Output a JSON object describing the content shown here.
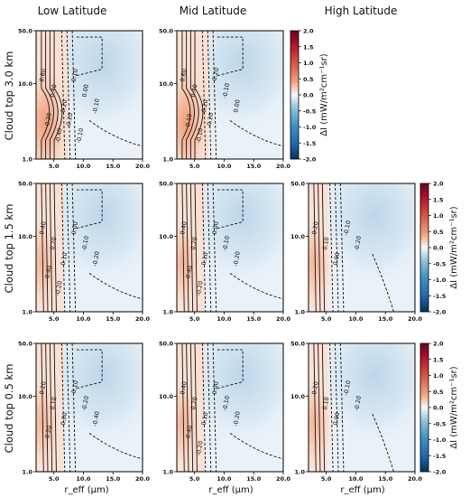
{
  "figure": {
    "column_titles": [
      "Low Latitude",
      "Mid Latitude",
      "High Latitude"
    ],
    "row_titles": [
      "Cloud top 3.0 km",
      "Cloud top 1.5 km",
      "Cloud top 0.5 km"
    ],
    "x_axis_label": "r_eff (μm)",
    "colorbar_label": "ΔI (mW/m²cm⁻¹sr)",
    "colorbar_ticks": [
      "2.0",
      "1.5",
      "1.0",
      "0.5",
      "0.0",
      "-0.5",
      "-1.0",
      "-1.5",
      "-2.0"
    ],
    "colors": {
      "positive": "#c0392b",
      "neutral": "#f7f7f7",
      "negative": "#2c6fb5"
    }
  },
  "chart_data": {
    "type": "heatmap",
    "title": "",
    "xlabel": "r_eff (μm)",
    "ylabel": "",
    "x_ticks": [
      "5.0",
      "10.0",
      "15.0",
      "20.0"
    ],
    "y_ticks": [
      "1.0",
      "10.0",
      "50.0"
    ],
    "xlim": [
      2,
      20
    ],
    "ylim": [
      1,
      50
    ],
    "y_scale": "log",
    "colorbar_range": [
      -2.0,
      2.0
    ],
    "colormap": "diverging blue-white-red",
    "panels": [
      {
        "row": "Cloud top 3.0 km",
        "col": "Low Latitude",
        "present": true,
        "contour_labels": [
          "0.60",
          "0.40",
          "0.20",
          "0.10",
          "0.00",
          "-0.10",
          "-0.20",
          "-0.40",
          "-0.20",
          "-0.10"
        ]
      },
      {
        "row": "Cloud top 3.0 km",
        "col": "Mid Latitude",
        "present": true,
        "contour_labels": [
          "0.60",
          "0.40",
          "0.20",
          "-0.20",
          "-0.10",
          "0.00",
          "0.10",
          "-0.10",
          "-0.20"
        ]
      },
      {
        "row": "Cloud top 3.0 km",
        "col": "High Latitude",
        "present": false
      },
      {
        "row": "Cloud top 1.5 km",
        "col": "Low Latitude",
        "present": true,
        "contour_labels": [
          "0.40",
          "0.20",
          "0.10",
          "0.00",
          "-0.10",
          "-0.20",
          "-0.40",
          "-0.20"
        ]
      },
      {
        "row": "Cloud top 1.5 km",
        "col": "Mid Latitude",
        "present": true,
        "contour_labels": [
          "0.40",
          "0.20",
          "0.10",
          "0.00",
          "-0.10",
          "-0.20",
          "-0.40",
          "-0.20"
        ]
      },
      {
        "row": "Cloud top 1.5 km",
        "col": "High Latitude",
        "present": true,
        "contour_labels": [
          "0.20",
          "0.10",
          "0.00",
          "-0.10",
          "-0.20"
        ]
      },
      {
        "row": "Cloud top 0.5 km",
        "col": "Low Latitude",
        "present": true,
        "contour_labels": [
          "0.20",
          "0.10",
          "0.00",
          "-0.10",
          "-0.20",
          "-0.40",
          "-0.20"
        ]
      },
      {
        "row": "Cloud top 0.5 km",
        "col": "Mid Latitude",
        "present": true,
        "contour_labels": [
          "0.40",
          "0.20",
          "0.10",
          "0.00",
          "-0.10",
          "-0.20",
          "-0.40",
          "-0.20"
        ]
      },
      {
        "row": "Cloud top 0.5 km",
        "col": "High Latitude",
        "present": true,
        "contour_labels": [
          "0.20",
          "0.10",
          "0.00",
          "-0.10",
          "-0.20"
        ]
      }
    ],
    "grid": false,
    "legend": "colorbar right of each row"
  }
}
